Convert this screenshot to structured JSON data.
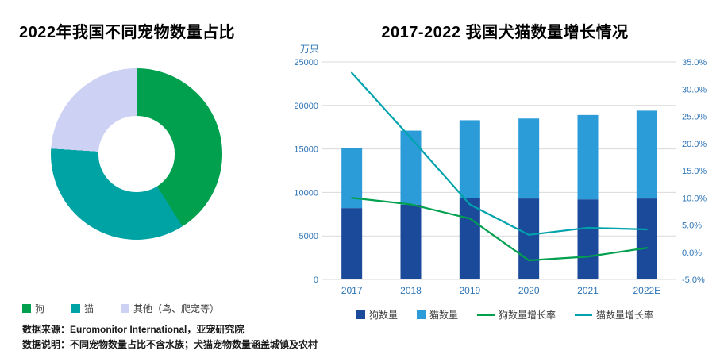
{
  "page": {
    "background": "#FFFFFF"
  },
  "notes": {
    "source_label": "数据来源：",
    "source_text": "Euromonitor International，亚宠研究院",
    "desc_label": "数据说明：",
    "desc_text": "不同宠物数量占比不含水族；犬猫宠物数量涵盖城镇及农村"
  },
  "colors": {
    "grid": "#D9D9D9",
    "axis_text": "#2E74B5",
    "title_text": "#000000",
    "legend_text": "#404040"
  },
  "chart_data": [
    {
      "type": "pie",
      "title": "2022年我国不同宠物数量占比",
      "donut": true,
      "hole_ratio": 0.44,
      "start_angle_deg": 0,
      "labels": [
        "狗",
        "猫",
        "其他（鸟、爬宠等）"
      ],
      "values_pct": [
        41,
        35,
        24
      ],
      "colors": [
        "#00A04E",
        "#00A3A3",
        "#CDD2F5"
      ],
      "legend_position": "bottom"
    },
    {
      "type": "bar",
      "subtype": "stacked-bars-with-lines",
      "title": "2017-2022 我国犬猫数量增长情况",
      "unit_label": "万只",
      "categories": [
        "2017",
        "2018",
        "2019",
        "2020",
        "2021",
        "2022E"
      ],
      "series": [
        {
          "name": "狗数量",
          "kind": "bar",
          "axis": "left",
          "color": "#1B4A9B",
          "values": [
            8200,
            8600,
            9350,
            9300,
            9200,
            9300
          ]
        },
        {
          "name": "猫数量",
          "kind": "bar",
          "axis": "left",
          "color": "#2B9CD8",
          "values": [
            6900,
            8500,
            8950,
            9200,
            9700,
            10100
          ]
        },
        {
          "name": "狗数量增长率",
          "kind": "line",
          "axis": "right",
          "color": "#00A04E",
          "values": [
            10.0,
            8.8,
            6.2,
            -1.5,
            -0.8,
            0.8
          ]
        },
        {
          "name": "猫数量增长率",
          "kind": "line",
          "axis": "right",
          "color": "#00A3AD",
          "values": [
            33.0,
            21.0,
            8.8,
            3.2,
            4.5,
            4.2
          ]
        }
      ],
      "left_axis": {
        "min": 0,
        "max": 25000,
        "step": 5000
      },
      "right_axis": {
        "min": -5,
        "max": 35,
        "step": 5,
        "unit": "%"
      },
      "grid": true,
      "legend_position": "bottom"
    }
  ]
}
